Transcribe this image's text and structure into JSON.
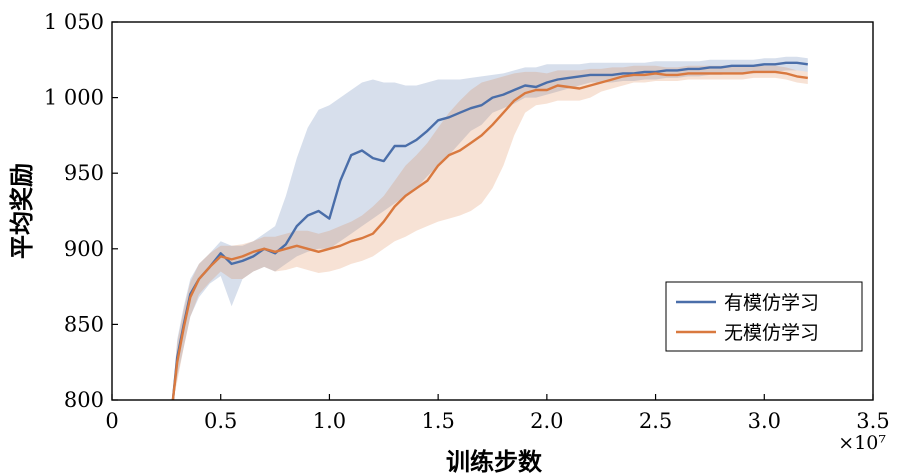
{
  "chart_data": {
    "type": "line",
    "title": "",
    "xlabel": "训练步数",
    "ylabel": "平均奖励",
    "x_scale_label": "×10⁷",
    "xlim": [
      0,
      3.5
    ],
    "ylim": [
      800,
      1050
    ],
    "x_ticks": [
      0,
      0.5,
      1.0,
      1.5,
      2.0,
      2.5,
      3.0,
      3.5
    ],
    "x_tick_labels": [
      "0",
      "0.5",
      "1.0",
      "1.5",
      "2.0",
      "2.5",
      "3.0",
      "3.5"
    ],
    "y_ticks": [
      800,
      850,
      900,
      950,
      1000,
      1050
    ],
    "y_tick_labels": [
      "800",
      "850",
      "900",
      "950",
      "1 000",
      "1 050"
    ],
    "grid": false,
    "legend_position": "bottom-right",
    "colors": {
      "series_1": "#4a6ea9",
      "series_2": "#d9793f"
    },
    "series": [
      {
        "name": "有模仿学习",
        "x": [
          0.28,
          0.3,
          0.33,
          0.36,
          0.4,
          0.45,
          0.5,
          0.55,
          0.6,
          0.65,
          0.7,
          0.75,
          0.8,
          0.85,
          0.9,
          0.95,
          1.0,
          1.05,
          1.1,
          1.15,
          1.2,
          1.25,
          1.3,
          1.35,
          1.4,
          1.45,
          1.5,
          1.55,
          1.6,
          1.65,
          1.7,
          1.75,
          1.8,
          1.85,
          1.9,
          1.95,
          2.0,
          2.05,
          2.1,
          2.15,
          2.2,
          2.25,
          2.3,
          2.35,
          2.4,
          2.45,
          2.5,
          2.55,
          2.6,
          2.65,
          2.7,
          2.75,
          2.8,
          2.85,
          2.9,
          2.95,
          3.0,
          3.05,
          3.1,
          3.15,
          3.2
        ],
        "values": [
          800,
          828,
          850,
          870,
          880,
          888,
          897,
          890,
          892,
          895,
          900,
          897,
          903,
          915,
          922,
          925,
          920,
          945,
          962,
          965,
          960,
          958,
          968,
          968,
          972,
          978,
          985,
          987,
          990,
          993,
          995,
          1000,
          1002,
          1005,
          1008,
          1007,
          1010,
          1012,
          1013,
          1014,
          1015,
          1015,
          1015,
          1016,
          1016,
          1017,
          1017,
          1018,
          1018,
          1019,
          1019,
          1020,
          1020,
          1021,
          1021,
          1021,
          1022,
          1022,
          1023,
          1023,
          1022
        ],
        "lower": [
          800,
          815,
          835,
          855,
          868,
          877,
          882,
          862,
          880,
          885,
          888,
          885,
          890,
          895,
          898,
          900,
          900,
          905,
          910,
          915,
          920,
          925,
          930,
          935,
          940,
          948,
          955,
          962,
          970,
          978,
          982,
          990,
          993,
          996,
          1000,
          1000,
          1002,
          1004,
          1006,
          1008,
          1010,
          1010,
          1010,
          1011,
          1011,
          1012,
          1012,
          1013,
          1013,
          1014,
          1014,
          1015,
          1015,
          1016,
          1016,
          1016,
          1017,
          1017,
          1018,
          1018,
          1017
        ],
        "upper": [
          805,
          840,
          862,
          880,
          890,
          897,
          905,
          902,
          902,
          905,
          910,
          915,
          935,
          960,
          980,
          992,
          995,
          1000,
          1005,
          1010,
          1012,
          1010,
          1010,
          1008,
          1008,
          1010,
          1012,
          1012,
          1012,
          1013,
          1014,
          1015,
          1016,
          1018,
          1020,
          1020,
          1022,
          1022,
          1022,
          1022,
          1023,
          1023,
          1023,
          1023,
          1023,
          1023,
          1024,
          1024,
          1024,
          1024,
          1024,
          1025,
          1025,
          1025,
          1025,
          1025,
          1026,
          1026,
          1027,
          1027,
          1026
        ]
      },
      {
        "name": "无模仿学习",
        "x": [
          0.28,
          0.3,
          0.33,
          0.36,
          0.4,
          0.45,
          0.5,
          0.55,
          0.6,
          0.65,
          0.7,
          0.75,
          0.8,
          0.85,
          0.9,
          0.95,
          1.0,
          1.05,
          1.1,
          1.15,
          1.2,
          1.25,
          1.3,
          1.35,
          1.4,
          1.45,
          1.5,
          1.55,
          1.6,
          1.65,
          1.7,
          1.75,
          1.8,
          1.85,
          1.9,
          1.95,
          2.0,
          2.05,
          2.1,
          2.15,
          2.2,
          2.25,
          2.3,
          2.35,
          2.4,
          2.45,
          2.5,
          2.55,
          2.6,
          2.65,
          2.7,
          2.75,
          2.8,
          2.85,
          2.9,
          2.95,
          3.0,
          3.05,
          3.1,
          3.15,
          3.2
        ],
        "values": [
          800,
          825,
          848,
          868,
          880,
          888,
          895,
          893,
          895,
          898,
          900,
          898,
          900,
          902,
          900,
          898,
          900,
          902,
          905,
          907,
          910,
          918,
          928,
          935,
          940,
          945,
          955,
          962,
          965,
          970,
          975,
          982,
          990,
          998,
          1003,
          1005,
          1005,
          1008,
          1007,
          1006,
          1008,
          1010,
          1012,
          1014,
          1015,
          1015,
          1016,
          1015,
          1015,
          1016,
          1016,
          1016,
          1016,
          1016,
          1016,
          1017,
          1017,
          1017,
          1016,
          1014,
          1013
        ],
        "lower": [
          800,
          812,
          835,
          855,
          870,
          878,
          885,
          880,
          880,
          885,
          888,
          885,
          886,
          888,
          886,
          884,
          885,
          887,
          890,
          892,
          895,
          900,
          905,
          908,
          912,
          915,
          918,
          920,
          922,
          925,
          930,
          940,
          955,
          975,
          990,
          995,
          996,
          998,
          998,
          998,
          1000,
          1004,
          1006,
          1008,
          1010,
          1010,
          1011,
          1011,
          1011,
          1012,
          1012,
          1012,
          1012,
          1012,
          1012,
          1013,
          1013,
          1013,
          1012,
          1010,
          1009
        ],
        "upper": [
          805,
          838,
          860,
          878,
          890,
          897,
          902,
          902,
          903,
          905,
          908,
          908,
          910,
          912,
          912,
          910,
          912,
          915,
          918,
          922,
          928,
          935,
          945,
          955,
          962,
          970,
          980,
          990,
          998,
          1005,
          1010,
          1012,
          1014,
          1016,
          1017,
          1017,
          1016,
          1018,
          1018,
          1018,
          1019,
          1019,
          1020,
          1020,
          1021,
          1021,
          1021,
          1020,
          1020,
          1021,
          1021,
          1021,
          1021,
          1021,
          1021,
          1021,
          1021,
          1021,
          1020,
          1018,
          1017
        ]
      }
    ]
  }
}
